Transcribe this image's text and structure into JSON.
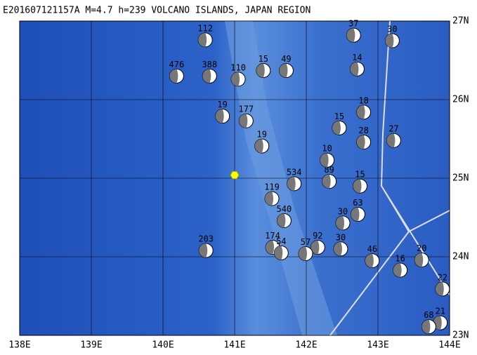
{
  "title": "E201607121157A  M=4.7  h=239  VOLCANO ISLANDS, JAPAN REGION",
  "xlim": [
    138,
    144
  ],
  "ylim": [
    23,
    27
  ],
  "xticks": [
    {
      "value": 138,
      "label": "138E"
    },
    {
      "value": 139,
      "label": "139E"
    },
    {
      "value": 140,
      "label": "140E"
    },
    {
      "value": 141,
      "label": "141E"
    },
    {
      "value": 142,
      "label": "142E"
    },
    {
      "value": 143,
      "label": "143E"
    },
    {
      "value": 144,
      "label": "144E"
    }
  ],
  "yticks": [
    {
      "value": 23,
      "label": "23N"
    },
    {
      "value": 24,
      "label": "24N"
    },
    {
      "value": 25,
      "label": "25N"
    },
    {
      "value": 26,
      "label": "26N"
    },
    {
      "value": 27,
      "label": "27N"
    }
  ],
  "epicenter": {
    "lon": 141.0,
    "lat": 25.04
  },
  "events": [
    {
      "lon": 141.05,
      "lat": 26.26,
      "depth": 110
    },
    {
      "lon": 141.4,
      "lat": 26.37,
      "depth": 15
    },
    {
      "lon": 141.72,
      "lat": 26.37,
      "depth": 49
    },
    {
      "lon": 140.19,
      "lat": 26.3,
      "depth": 476
    },
    {
      "lon": 140.65,
      "lat": 26.3,
      "depth": 388
    },
    {
      "lon": 140.59,
      "lat": 26.76,
      "depth": 112
    },
    {
      "lon": 140.83,
      "lat": 25.79,
      "depth": 19
    },
    {
      "lon": 141.16,
      "lat": 25.73,
      "depth": 177
    },
    {
      "lon": 141.38,
      "lat": 25.41,
      "depth": 19
    },
    {
      "lon": 141.83,
      "lat": 24.93,
      "depth": 534
    },
    {
      "lon": 142.32,
      "lat": 24.96,
      "depth": 89
    },
    {
      "lon": 142.75,
      "lat": 24.9,
      "depth": 15
    },
    {
      "lon": 142.29,
      "lat": 25.23,
      "depth": 10
    },
    {
      "lon": 142.46,
      "lat": 25.64,
      "depth": 15
    },
    {
      "lon": 142.8,
      "lat": 25.84,
      "depth": 18
    },
    {
      "lon": 142.8,
      "lat": 25.46,
      "depth": 28
    },
    {
      "lon": 143.22,
      "lat": 25.48,
      "depth": 27
    },
    {
      "lon": 141.52,
      "lat": 24.74,
      "depth": 119
    },
    {
      "lon": 141.69,
      "lat": 24.46,
      "depth": 540
    },
    {
      "lon": 140.6,
      "lat": 24.08,
      "depth": 203
    },
    {
      "lon": 142.16,
      "lat": 24.12,
      "depth": 92
    },
    {
      "lon": 142.51,
      "lat": 24.43,
      "depth": 30
    },
    {
      "lon": 142.72,
      "lat": 24.54,
      "depth": 63
    },
    {
      "lon": 141.99,
      "lat": 24.04,
      "depth": 57
    },
    {
      "lon": 142.48,
      "lat": 24.1,
      "depth": 30
    },
    {
      "lon": 142.92,
      "lat": 23.95,
      "depth": 46
    },
    {
      "lon": 143.31,
      "lat": 23.83,
      "depth": 16
    },
    {
      "lon": 143.61,
      "lat": 23.96,
      "depth": 20
    },
    {
      "lon": 143.9,
      "lat": 23.59,
      "depth": 22
    },
    {
      "lon": 143.87,
      "lat": 23.16,
      "depth": 21
    },
    {
      "lon": 143.71,
      "lat": 23.11,
      "depth": 68
    },
    {
      "lon": 142.71,
      "lat": 26.39,
      "depth": 14
    },
    {
      "lon": 143.2,
      "lat": 26.75,
      "depth": 30
    },
    {
      "lon": 142.66,
      "lat": 26.82,
      "depth": 37
    },
    {
      "lon": 141.53,
      "lat": 24.12,
      "depth": 174
    },
    {
      "lon": 141.65,
      "lat": 24.05,
      "depth": 54
    }
  ]
}
